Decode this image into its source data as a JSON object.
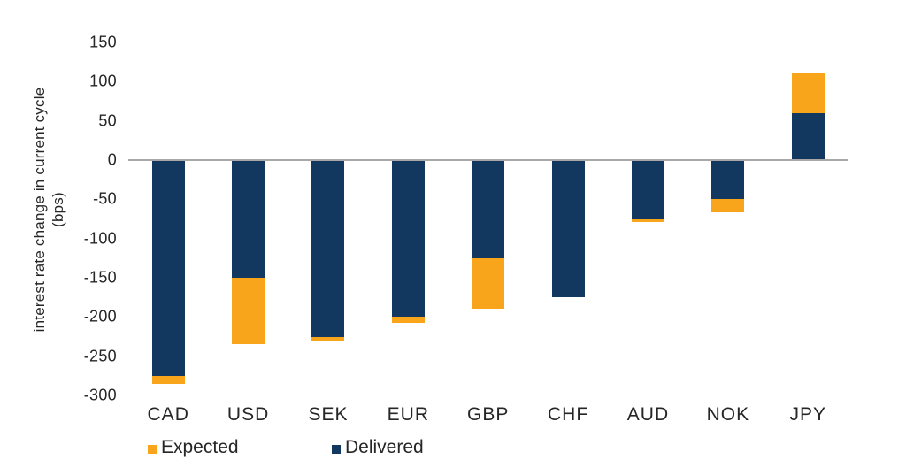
{
  "chart_data": {
    "type": "bar",
    "stacked": true,
    "orientation": "vertical",
    "title": "",
    "ylabel_line1": "interest rate change in current cycle",
    "ylabel_line2": "(bps)",
    "categories": [
      "CAD",
      "USD",
      "SEK",
      "EUR",
      "GBP",
      "CHF",
      "AUD",
      "NOK",
      "JPY"
    ],
    "series": [
      {
        "name": "Delivered",
        "color": "#13385F",
        "values": [
          -275,
          -150,
          -225,
          -200,
          -125,
          -175,
          -75,
          -50,
          60
        ]
      },
      {
        "name": "Expected",
        "color": "#F9A51B",
        "values": [
          -10,
          -85,
          -5,
          -8,
          -65,
          0,
          -4,
          -17,
          52
        ]
      }
    ],
    "totals": [
      -285,
      -235,
      -230,
      -208,
      -190,
      -175,
      -79,
      -67,
      112
    ],
    "y_ticks": [
      150,
      100,
      50,
      0,
      -50,
      -100,
      -150,
      -200,
      -250,
      -300
    ],
    "ylim": [
      -300,
      150
    ],
    "gridlines": "none, zero baseline only",
    "legend_position": "bottom-left",
    "legend": [
      {
        "label": "Expected",
        "color": "#F9A51B"
      },
      {
        "label": "Delivered",
        "color": "#13385F"
      }
    ]
  },
  "colors": {
    "background": "#FFFFFF",
    "baseline": "#A8A8A8",
    "text": "#262626",
    "delivered_navy": "#13385F",
    "expected_orange": "#F9A51B"
  }
}
